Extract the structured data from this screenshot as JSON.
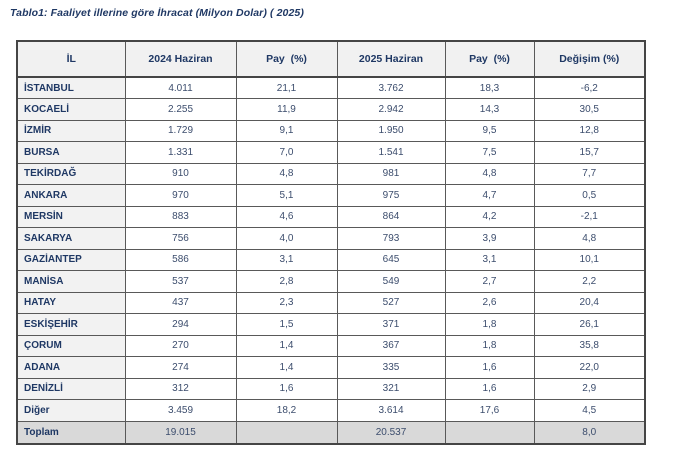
{
  "title": "Tablo1: Faaliyet illerine göre İhracat (Milyon Dolar) ( 2025)",
  "table": {
    "columns": [
      "İL",
      "2024 Haziran",
      "Pay  (%)",
      "2025 Haziran",
      "Pay  (%)",
      "Değişim (%)"
    ],
    "rows": [
      [
        "İSTANBUL",
        "4.011",
        "21,1",
        "3.762",
        "18,3",
        "-6,2"
      ],
      [
        "KOCAELİ",
        "2.255",
        "11,9",
        "2.942",
        "14,3",
        "30,5"
      ],
      [
        "İZMİR",
        "1.729",
        "9,1",
        "1.950",
        "9,5",
        "12,8"
      ],
      [
        "BURSA",
        "1.331",
        "7,0",
        "1.541",
        "7,5",
        "15,7"
      ],
      [
        "TEKİRDAĞ",
        "910",
        "4,8",
        "981",
        "4,8",
        "7,7"
      ],
      [
        "ANKARA",
        "970",
        "5,1",
        "975",
        "4,7",
        "0,5"
      ],
      [
        "MERSİN",
        "883",
        "4,6",
        "864",
        "4,2",
        "-2,1"
      ],
      [
        "SAKARYA",
        "756",
        "4,0",
        "793",
        "3,9",
        "4,8"
      ],
      [
        "GAZİANTEP",
        "586",
        "3,1",
        "645",
        "3,1",
        "10,1"
      ],
      [
        "MANİSA",
        "537",
        "2,8",
        "549",
        "2,7",
        "2,2"
      ],
      [
        "HATAY",
        "437",
        "2,3",
        "527",
        "2,6",
        "20,4"
      ],
      [
        "ESKİŞEHİR",
        "294",
        "1,5",
        "371",
        "1,8",
        "26,1"
      ],
      [
        "ÇORUM",
        "270",
        "1,4",
        "367",
        "1,8",
        "35,8"
      ],
      [
        "ADANA",
        "274",
        "1,4",
        "335",
        "1,6",
        "22,0"
      ],
      [
        "DENİZLİ",
        "312",
        "1,6",
        "321",
        "1,6",
        "2,9"
      ],
      [
        "Diğer",
        "3.459",
        "18,2",
        "3.614",
        "17,6",
        "4,5"
      ]
    ],
    "total_row": [
      "Toplam",
      "19.015",
      "",
      "20.537",
      "",
      "8,0"
    ]
  },
  "colors": {
    "title_text": "#1f3864",
    "header_bg": "#f1f1f1",
    "row_label_bg": "#f2f2f2",
    "total_row_bg": "#d9d9d9",
    "label_text": "#1f3864",
    "number_text": "#3c4d6d",
    "border": "#595959",
    "outer_border": "#454545"
  }
}
